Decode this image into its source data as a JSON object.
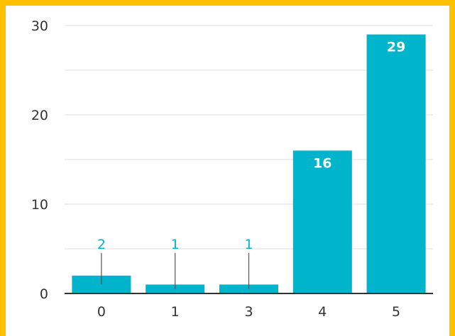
{
  "chart_data": {
    "type": "bar",
    "categories": [
      "0",
      "1",
      "3",
      "4",
      "5"
    ],
    "values": [
      2,
      1,
      1,
      16,
      29
    ],
    "data_labels": [
      "2",
      "1",
      "1",
      "16",
      "29"
    ],
    "title": "",
    "xlabel": "",
    "ylabel": "",
    "ylim": [
      0,
      30
    ],
    "yticks": [
      "0",
      "10",
      "20",
      "30"
    ],
    "minor_gridlines_at": [
      5,
      15,
      25
    ],
    "grid": true,
    "legend": "none",
    "colors": {
      "bar": "#00B4CC",
      "border": "#FFC000",
      "grid": "#E3E3E3",
      "axis": "#333333",
      "outside_label": "#00B4CC",
      "inside_label": "#FFFFFF",
      "leader": "#555555"
    }
  }
}
